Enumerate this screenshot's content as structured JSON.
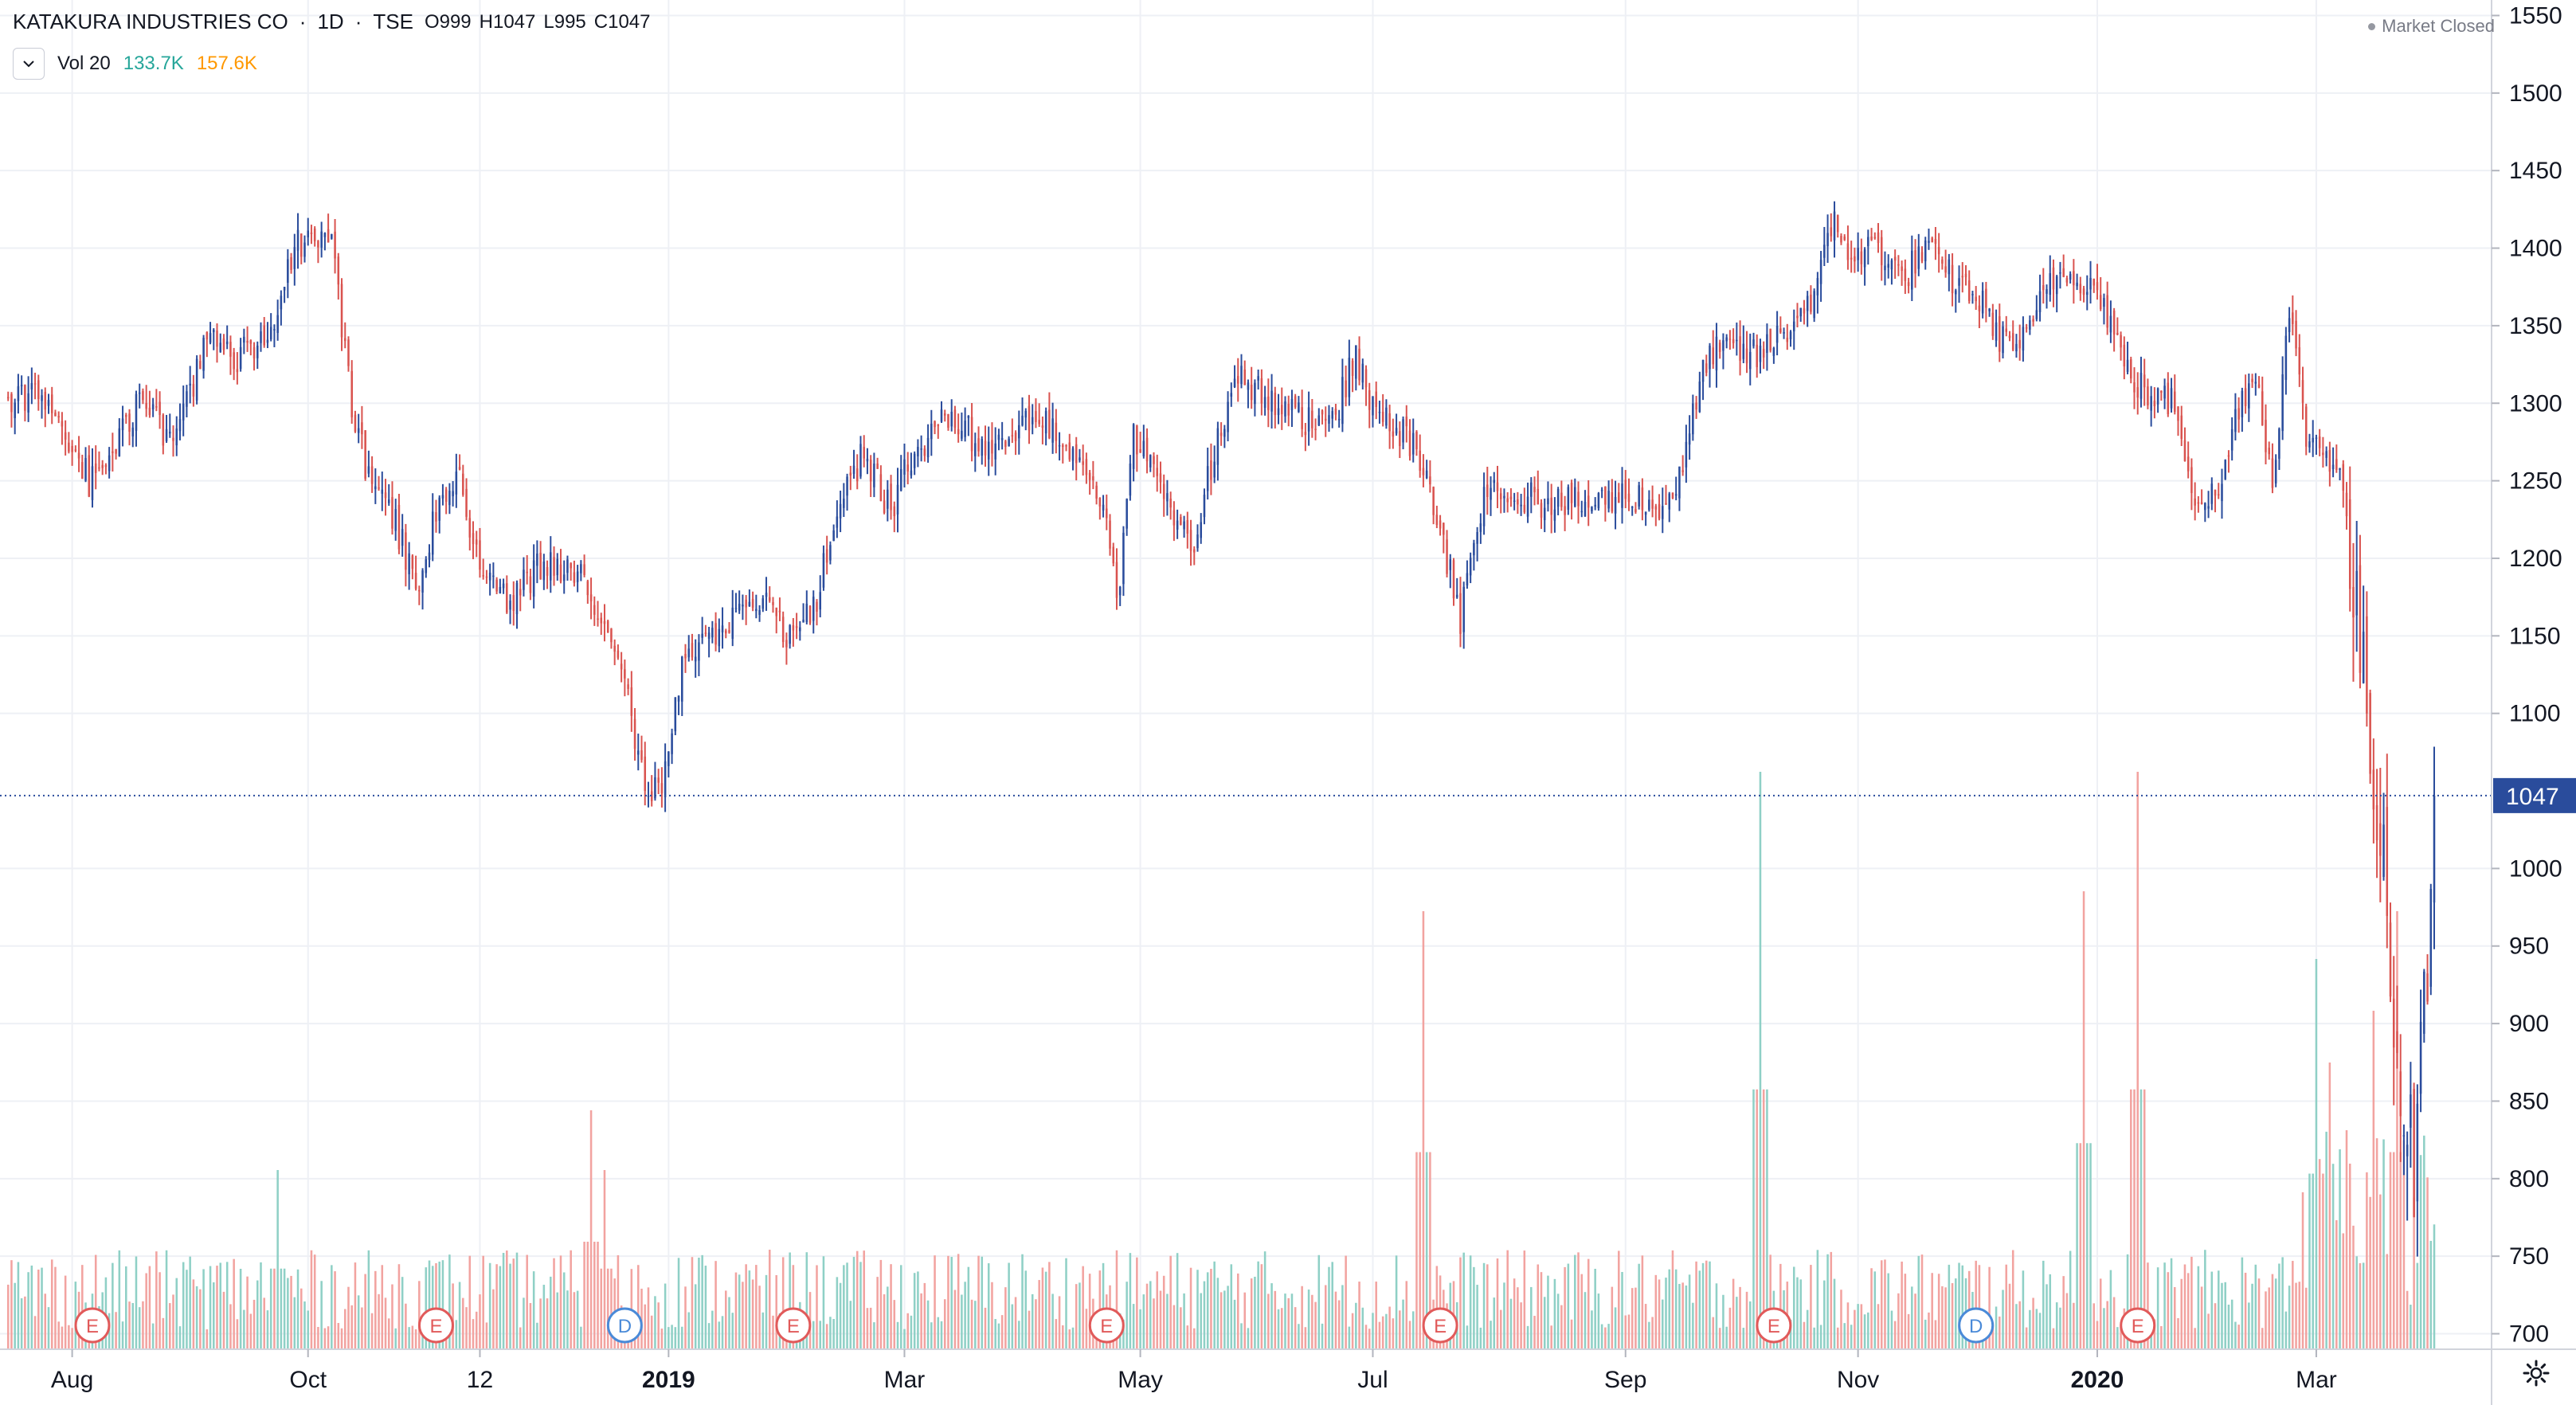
{
  "header": {
    "symbol": "KATAKURA INDUSTRIES CO",
    "interval": "1D",
    "exchange": "TSE",
    "open": "O999",
    "high": "H1047",
    "low": "L995",
    "close": "C1047",
    "volume_label": "Vol 20",
    "volume_value": "133.7K",
    "volume_ma": "157.6K"
  },
  "status": {
    "market": "Market Closed"
  },
  "colors": {
    "up": "#2a4c9c",
    "down": "#d9534f",
    "vol_up": "#8fd0c6",
    "vol_down": "#f2a3a0",
    "grid": "#eef0f5",
    "axis_text": "#131722",
    "price_line": "#2a4c9c",
    "event_earnings": "#e15a5a",
    "event_dividend": "#4a8ad8"
  },
  "chart_data": {
    "type": "candlestick",
    "title": "KATAKURA INDUSTRIES CO · 1D · TSE",
    "ylim": [
      690,
      1560
    ],
    "y_ticks": [
      1550,
      1500,
      1450,
      1400,
      1350,
      1300,
      1250,
      1200,
      1150,
      1100,
      1000,
      950,
      900,
      850,
      800,
      750,
      700
    ],
    "x_ticks": [
      {
        "label": "Aug",
        "t": 20
      },
      {
        "label": "Oct",
        "t": 90
      },
      {
        "label": "12",
        "t": 141
      },
      {
        "label": "2019",
        "t": 197,
        "bold": true
      },
      {
        "label": "Mar",
        "t": 267
      },
      {
        "label": "May",
        "t": 337
      },
      {
        "label": "Jul",
        "t": 406
      },
      {
        "label": "Sep",
        "t": 481
      },
      {
        "label": "Nov",
        "t": 550
      },
      {
        "label": "2020",
        "t": 621,
        "bold": true
      },
      {
        "label": "Mar",
        "t": 686
      }
    ],
    "n_bars": 721,
    "last_price": 1047,
    "price_anchors": [
      [
        0,
        1300
      ],
      [
        12,
        1305
      ],
      [
        25,
        1250
      ],
      [
        40,
        1300
      ],
      [
        50,
        1275
      ],
      [
        60,
        1340
      ],
      [
        70,
        1330
      ],
      [
        78,
        1345
      ],
      [
        86,
        1400
      ],
      [
        92,
        1405
      ],
      [
        97,
        1400
      ],
      [
        103,
        1300
      ],
      [
        108,
        1250
      ],
      [
        115,
        1230
      ],
      [
        122,
        1180
      ],
      [
        128,
        1230
      ],
      [
        135,
        1250
      ],
      [
        141,
        1195
      ],
      [
        150,
        1170
      ],
      [
        160,
        1200
      ],
      [
        172,
        1185
      ],
      [
        180,
        1155
      ],
      [
        186,
        1100
      ],
      [
        191,
        1040
      ],
      [
        196,
        1060
      ],
      [
        201,
        1130
      ],
      [
        210,
        1150
      ],
      [
        225,
        1170
      ],
      [
        233,
        1150
      ],
      [
        240,
        1165
      ],
      [
        247,
        1230
      ],
      [
        255,
        1270
      ],
      [
        263,
        1230
      ],
      [
        270,
        1270
      ],
      [
        280,
        1290
      ],
      [
        290,
        1275
      ],
      [
        300,
        1285
      ],
      [
        310,
        1285
      ],
      [
        320,
        1265
      ],
      [
        326,
        1235
      ],
      [
        330,
        1170
      ],
      [
        335,
        1280
      ],
      [
        345,
        1245
      ],
      [
        352,
        1200
      ],
      [
        358,
        1260
      ],
      [
        366,
        1320
      ],
      [
        375,
        1300
      ],
      [
        385,
        1290
      ],
      [
        395,
        1295
      ],
      [
        401,
        1330
      ],
      [
        407,
        1290
      ],
      [
        415,
        1280
      ],
      [
        421,
        1260
      ],
      [
        428,
        1200
      ],
      [
        432,
        1160
      ],
      [
        440,
        1250
      ],
      [
        450,
        1240
      ],
      [
        460,
        1235
      ],
      [
        470,
        1235
      ],
      [
        480,
        1240
      ],
      [
        485,
        1240
      ],
      [
        490,
        1230
      ],
      [
        497,
        1250
      ],
      [
        505,
        1330
      ],
      [
        512,
        1335
      ],
      [
        520,
        1330
      ],
      [
        530,
        1350
      ],
      [
        538,
        1375
      ],
      [
        543,
        1420
      ],
      [
        549,
        1390
      ],
      [
        555,
        1405
      ],
      [
        563,
        1380
      ],
      [
        570,
        1400
      ],
      [
        578,
        1380
      ],
      [
        585,
        1370
      ],
      [
        593,
        1340
      ],
      [
        600,
        1340
      ],
      [
        607,
        1380
      ],
      [
        614,
        1385
      ],
      [
        622,
        1370
      ],
      [
        630,
        1320
      ],
      [
        636,
        1305
      ],
      [
        644,
        1300
      ],
      [
        650,
        1240
      ],
      [
        657,
        1240
      ],
      [
        663,
        1300
      ],
      [
        668,
        1320
      ],
      [
        673,
        1250
      ],
      [
        678,
        1360
      ],
      [
        683,
        1280
      ],
      [
        688,
        1270
      ],
      [
        693,
        1260
      ],
      [
        697,
        1180
      ],
      [
        700,
        1120
      ],
      [
        703,
        1060
      ],
      [
        706,
        1020
      ],
      [
        709,
        900
      ],
      [
        712,
        850
      ],
      [
        715,
        810
      ],
      [
        718,
        900
      ],
      [
        721,
        1047
      ]
    ],
    "volume": {
      "name": "Vol 20",
      "last": "133.7K",
      "ma": "157.6K",
      "base_range": [
        5,
        25
      ],
      "spikes": [
        {
          "t": 81,
          "v": 45
        },
        {
          "t": 174,
          "v": 60
        },
        {
          "t": 178,
          "v": 45
        },
        {
          "t": 421,
          "v": 110
        },
        {
          "t": 521,
          "v": 145
        },
        {
          "t": 617,
          "v": 115
        },
        {
          "t": 633,
          "v": 145
        },
        {
          "t": 686,
          "v": 98
        },
        {
          "t": 690,
          "v": 72
        },
        {
          "t": 695,
          "v": 55
        },
        {
          "t": 703,
          "v": 85
        },
        {
          "t": 710,
          "v": 110
        }
      ]
    },
    "events": [
      {
        "type": "E",
        "t": 26
      },
      {
        "type": "E",
        "t": 128
      },
      {
        "type": "D",
        "t": 184
      },
      {
        "type": "E",
        "t": 234
      },
      {
        "type": "E",
        "t": 327
      },
      {
        "type": "E",
        "t": 426
      },
      {
        "type": "E",
        "t": 525
      },
      {
        "type": "D",
        "t": 585
      },
      {
        "type": "E",
        "t": 633
      }
    ]
  }
}
